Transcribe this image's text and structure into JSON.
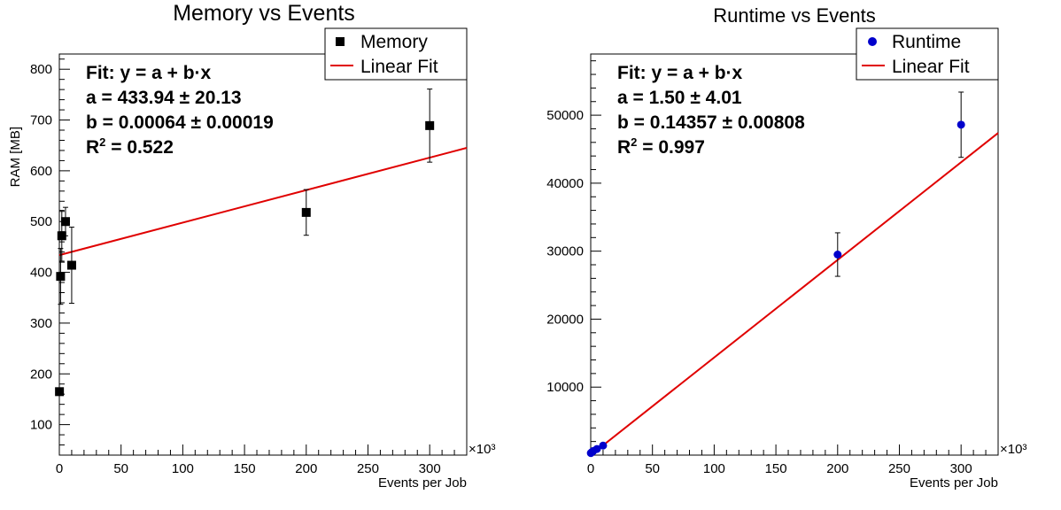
{
  "chart_data": [
    {
      "type": "scatter",
      "title": "Memory vs Events",
      "xlabel": "Events per Job",
      "ylabel": "RAM [MB]",
      "x_multiplier_label": "×10³",
      "xlim": [
        0,
        330000
      ],
      "ylim": [
        40,
        830
      ],
      "x_ticks": [
        0,
        50,
        100,
        150,
        200,
        250,
        300
      ],
      "y_ticks": [
        100,
        200,
        300,
        400,
        500,
        600,
        700,
        800
      ],
      "x_tick_labels": [
        "0",
        "50",
        "100",
        "150",
        "200",
        "250",
        "300"
      ],
      "y_tick_labels": [
        "100",
        "200",
        "300",
        "400",
        "500",
        "600",
        "700",
        "800"
      ],
      "marker": "square",
      "marker_color": "#000000",
      "series": [
        {
          "name": "Memory",
          "points": [
            {
              "x": 100,
              "y": 165,
              "err": 0
            },
            {
              "x": 1000,
              "y": 392,
              "err": 55
            },
            {
              "x": 2000,
              "y": 472,
              "err": 50
            },
            {
              "x": 5000,
              "y": 500,
              "err": 28
            },
            {
              "x": 10000,
              "y": 414,
              "err": 75
            },
            {
              "x": 200000,
              "y": 518,
              "err": 45
            },
            {
              "x": 300000,
              "y": 689,
              "err": 72
            }
          ]
        }
      ],
      "fit": {
        "name": "Linear Fit",
        "a": 433.94,
        "b": 0.00064,
        "color": "#e00000"
      },
      "legend": {
        "position": "top-right",
        "entries": [
          "Memory",
          "Linear Fit"
        ]
      },
      "stats": {
        "line1": "Fit: y = a + b·x",
        "line2": "a = 433.94 ± 20.13",
        "line3": "b = 0.00064 ± 0.00019",
        "line4_prefix": "R",
        "line4_sup": "2",
        "line4_suffix": " = 0.522"
      },
      "grid": false
    },
    {
      "type": "scatter",
      "title": "Runtime vs Events",
      "xlabel": "Events per Job",
      "ylabel": "",
      "x_multiplier_label": "×10³",
      "xlim": [
        0,
        330000
      ],
      "ylim": [
        0,
        59000
      ],
      "x_ticks": [
        0,
        50,
        100,
        150,
        200,
        250,
        300
      ],
      "y_ticks": [
        10000,
        20000,
        30000,
        40000,
        50000
      ],
      "x_tick_labels": [
        "0",
        "50",
        "100",
        "150",
        "200",
        "250",
        "300"
      ],
      "y_tick_labels": [
        "10000",
        "20000",
        "30000",
        "40000",
        "50000"
      ],
      "marker": "circle",
      "marker_color": "#0000cc",
      "series": [
        {
          "name": "Runtime",
          "points": [
            {
              "x": 100,
              "y": 300,
              "err": 0
            },
            {
              "x": 1000,
              "y": 450,
              "err": 0
            },
            {
              "x": 2000,
              "y": 600,
              "err": 0
            },
            {
              "x": 5000,
              "y": 900,
              "err": 0
            },
            {
              "x": 10000,
              "y": 1400,
              "err": 0
            },
            {
              "x": 200000,
              "y": 29500,
              "err": 3200
            },
            {
              "x": 300000,
              "y": 48600,
              "err": 4800
            }
          ]
        }
      ],
      "fit": {
        "name": "Linear Fit",
        "a": 1.5,
        "b": 0.14357,
        "color": "#e00000"
      },
      "legend": {
        "position": "top-right",
        "entries": [
          "Runtime",
          "Linear Fit"
        ]
      },
      "stats": {
        "line1": "Fit: y = a + b·x",
        "line2": "a = 1.50 ± 4.01",
        "line3": "b = 0.14357 ± 0.00808",
        "line4_prefix": "R",
        "line4_sup": "2",
        "line4_suffix": " = 0.997"
      },
      "grid": false
    }
  ]
}
